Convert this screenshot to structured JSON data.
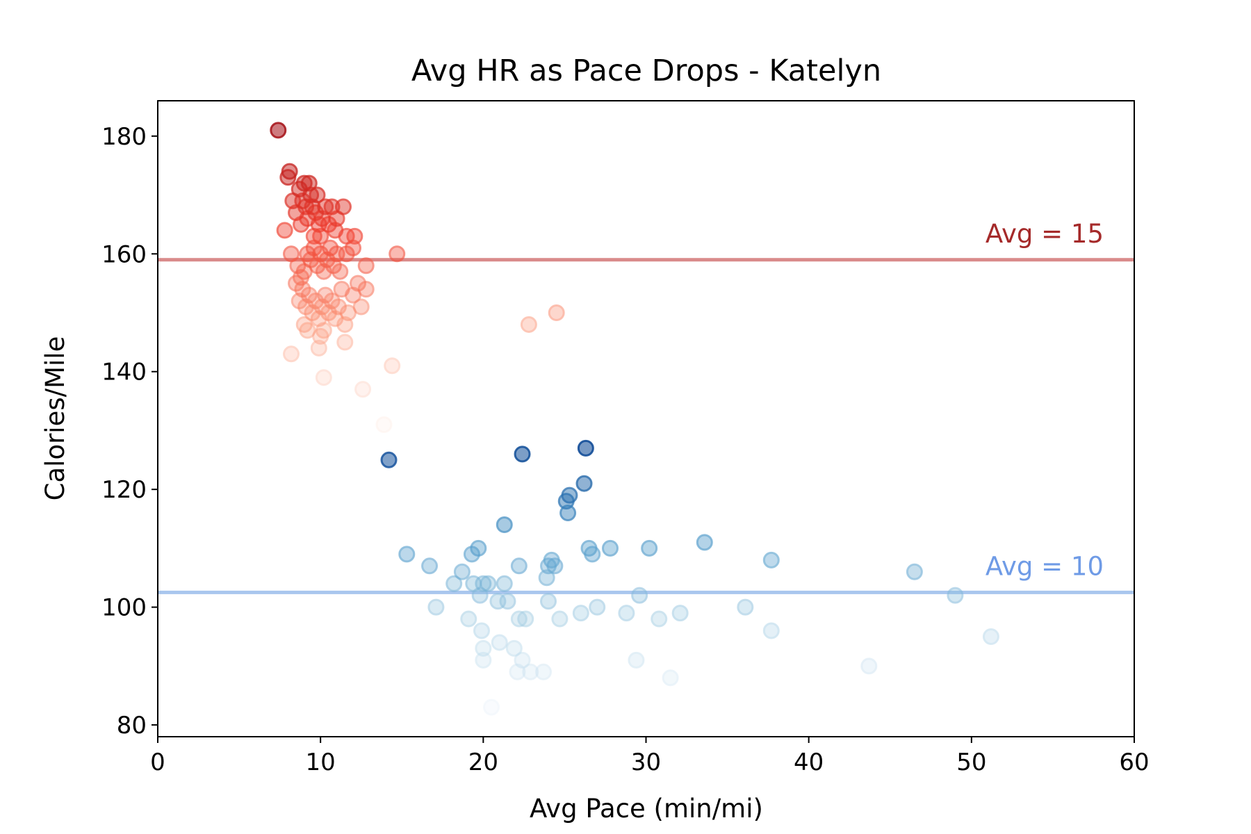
{
  "chart_data": {
    "type": "scatter",
    "title": "Avg HR as Pace Drops - Katelyn",
    "xlabel": "Avg Pace (min/mi)",
    "ylabel": "Calories/Mile",
    "xlim": [
      0,
      60
    ],
    "ylim": [
      78,
      186
    ],
    "xticks": [
      0,
      10,
      20,
      30,
      40,
      50,
      60
    ],
    "yticks": [
      80,
      100,
      120,
      140,
      160,
      180
    ],
    "grid": false,
    "legend": "none",
    "series": [
      {
        "color_scale": "reds",
        "points": [
          [
            7.4,
            181
          ],
          [
            8.0,
            173
          ],
          [
            8.1,
            174
          ],
          [
            7.8,
            164
          ],
          [
            8.3,
            169
          ],
          [
            8.5,
            167
          ],
          [
            8.7,
            171
          ],
          [
            8.8,
            165
          ],
          [
            8.9,
            169
          ],
          [
            9.0,
            172
          ],
          [
            9.1,
            168
          ],
          [
            9.2,
            166
          ],
          [
            9.3,
            172
          ],
          [
            9.4,
            170
          ],
          [
            9.5,
            168
          ],
          [
            9.6,
            163
          ],
          [
            9.7,
            167
          ],
          [
            9.8,
            170
          ],
          [
            9.9,
            165
          ],
          [
            10.0,
            163
          ],
          [
            10.1,
            166
          ],
          [
            10.3,
            168
          ],
          [
            10.5,
            165
          ],
          [
            10.7,
            168
          ],
          [
            10.9,
            164
          ],
          [
            11.0,
            166
          ],
          [
            11.4,
            168
          ],
          [
            11.6,
            163
          ],
          [
            12.1,
            163
          ],
          [
            12.0,
            161
          ],
          [
            8.2,
            160
          ],
          [
            8.6,
            158
          ],
          [
            8.8,
            156
          ],
          [
            9.0,
            157
          ],
          [
            9.2,
            160
          ],
          [
            9.4,
            159
          ],
          [
            9.6,
            161
          ],
          [
            9.8,
            158
          ],
          [
            10.0,
            160
          ],
          [
            10.2,
            157
          ],
          [
            10.4,
            159
          ],
          [
            10.6,
            161
          ],
          [
            10.8,
            158
          ],
          [
            11.0,
            160
          ],
          [
            11.2,
            157
          ],
          [
            11.6,
            160
          ],
          [
            12.3,
            155
          ],
          [
            12.8,
            158
          ],
          [
            14.7,
            160
          ],
          [
            8.5,
            155
          ],
          [
            8.7,
            152
          ],
          [
            8.9,
            154
          ],
          [
            9.1,
            151
          ],
          [
            9.3,
            153
          ],
          [
            9.5,
            150
          ],
          [
            9.7,
            152
          ],
          [
            9.9,
            149
          ],
          [
            10.1,
            151
          ],
          [
            10.3,
            153
          ],
          [
            10.5,
            150
          ],
          [
            10.7,
            152
          ],
          [
            10.9,
            149
          ],
          [
            11.1,
            151
          ],
          [
            11.3,
            154
          ],
          [
            12.0,
            153
          ],
          [
            12.5,
            151
          ],
          [
            12.8,
            154
          ],
          [
            11.7,
            150
          ],
          [
            9.0,
            148
          ],
          [
            9.2,
            147
          ],
          [
            10.0,
            146
          ],
          [
            10.2,
            147
          ],
          [
            11.5,
            148
          ],
          [
            9.9,
            144
          ],
          [
            11.5,
            145
          ],
          [
            8.2,
            143
          ],
          [
            10.2,
            139
          ],
          [
            14.4,
            141
          ],
          [
            12.6,
            137
          ],
          [
            13.9,
            131
          ],
          [
            22.8,
            148
          ],
          [
            24.5,
            150
          ]
        ]
      },
      {
        "color_scale": "blues",
        "points": [
          [
            14.2,
            125
          ],
          [
            22.4,
            126
          ],
          [
            26.3,
            127
          ],
          [
            26.2,
            121
          ],
          [
            25.1,
            118
          ],
          [
            25.3,
            119
          ],
          [
            25.2,
            116
          ],
          [
            21.3,
            114
          ],
          [
            15.3,
            109
          ],
          [
            16.7,
            107
          ],
          [
            18.2,
            104
          ],
          [
            18.7,
            106
          ],
          [
            19.3,
            109
          ],
          [
            19.7,
            110
          ],
          [
            19.4,
            104
          ],
          [
            19.8,
            102
          ],
          [
            20.0,
            104
          ],
          [
            20.3,
            104
          ],
          [
            21.3,
            104
          ],
          [
            22.2,
            107
          ],
          [
            24.0,
            107
          ],
          [
            24.2,
            108
          ],
          [
            24.4,
            107
          ],
          [
            23.9,
            105
          ],
          [
            26.5,
            110
          ],
          [
            26.7,
            109
          ],
          [
            27.8,
            110
          ],
          [
            30.2,
            110
          ],
          [
            33.6,
            111
          ],
          [
            37.7,
            108
          ],
          [
            46.5,
            106
          ],
          [
            49.0,
            102
          ],
          [
            17.1,
            100
          ],
          [
            19.1,
            98
          ],
          [
            19.9,
            96
          ],
          [
            20.0,
            93
          ],
          [
            20.0,
            91
          ],
          [
            20.9,
            101
          ],
          [
            21.5,
            101
          ],
          [
            22.2,
            98
          ],
          [
            22.6,
            98
          ],
          [
            24.0,
            101
          ],
          [
            24.7,
            98
          ],
          [
            26.0,
            99
          ],
          [
            27.0,
            100
          ],
          [
            28.8,
            99
          ],
          [
            29.6,
            102
          ],
          [
            30.8,
            98
          ],
          [
            32.1,
            99
          ],
          [
            36.1,
            100
          ],
          [
            37.7,
            96
          ],
          [
            51.2,
            95
          ],
          [
            21.0,
            94
          ],
          [
            21.9,
            93
          ],
          [
            22.4,
            91
          ],
          [
            22.1,
            89
          ],
          [
            22.9,
            89
          ],
          [
            23.7,
            89
          ],
          [
            29.4,
            91
          ],
          [
            31.5,
            88
          ],
          [
            43.7,
            90
          ],
          [
            20.5,
            83
          ]
        ]
      }
    ],
    "reference_lines": [
      {
        "label": "Avg = 15",
        "y": 159,
        "color": "#d98a8a",
        "label_color": "#a52a2a"
      },
      {
        "label": "Avg = 10",
        "y": 102.5,
        "color": "#a9c6ee",
        "label_color": "#6f9be6"
      }
    ]
  }
}
